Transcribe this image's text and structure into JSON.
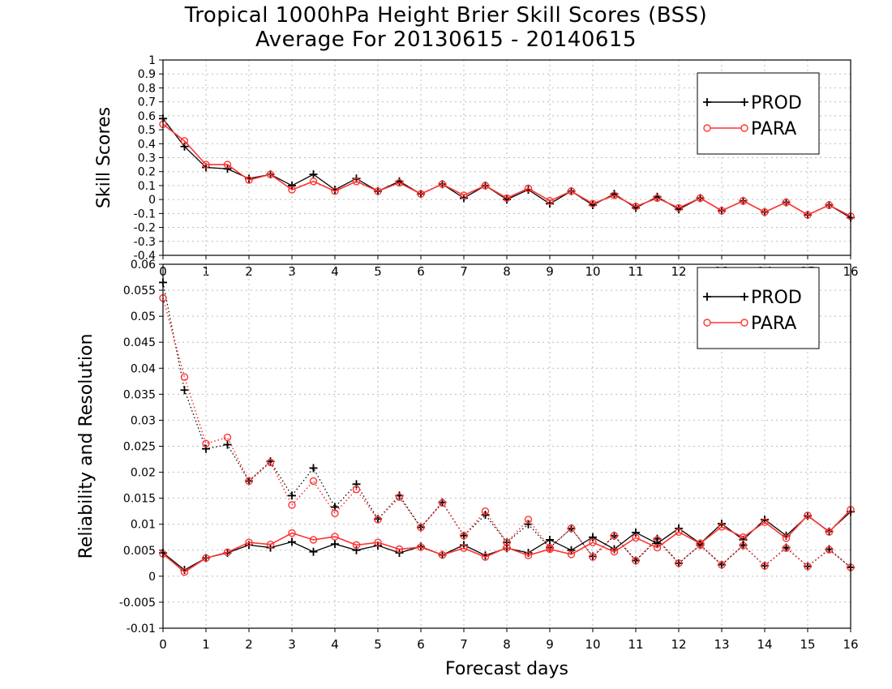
{
  "title": "Tropical 1000hPa Height Brier Skill Scores (BSS)",
  "subtitle": "Average For 20130615 - 20140615",
  "colors": {
    "prod": "#000000",
    "para": "#ff3333",
    "grid": "#bbbbbb",
    "axis": "#000000"
  },
  "chart_data": [
    {
      "type": "line",
      "ylabel": "Skill Scores",
      "xlabel": "",
      "xlim": [
        0,
        16
      ],
      "ylim": [
        -0.4,
        1
      ],
      "x_ticks": [
        "0",
        "1",
        "2",
        "3",
        "4",
        "5",
        "6",
        "7",
        "8",
        "9",
        "10",
        "11",
        "12",
        "13",
        "14",
        "15",
        "16"
      ],
      "y_ticks": [
        "-0.4",
        "-0.3",
        "-0.2",
        "-0.1",
        "0",
        "0.1",
        "0.2",
        "0.3",
        "0.4",
        "0.5",
        "0.6",
        "0.7",
        "0.8",
        "0.9",
        "1"
      ],
      "grid": true,
      "legend_position": "top-right",
      "x": [
        0,
        0.5,
        1,
        1.5,
        2,
        2.5,
        3,
        3.5,
        4,
        4.5,
        5,
        5.5,
        6,
        6.5,
        7,
        7.5,
        8,
        8.5,
        9,
        9.5,
        10,
        10.5,
        11,
        11.5,
        12,
        12.5,
        13,
        13.5,
        14,
        14.5,
        15,
        15.5,
        16
      ],
      "series": [
        {
          "name": "PROD",
          "marker": "plus",
          "style": "solid",
          "values": [
            0.58,
            0.38,
            0.23,
            0.22,
            0.15,
            0.18,
            0.1,
            0.18,
            0.07,
            0.15,
            0.06,
            0.13,
            0.04,
            0.11,
            0.01,
            0.1,
            0.0,
            0.07,
            -0.03,
            0.06,
            -0.04,
            0.04,
            -0.06,
            0.02,
            -0.07,
            0.01,
            -0.08,
            -0.01,
            -0.09,
            -0.02,
            -0.11,
            -0.04,
            -0.13
          ]
        },
        {
          "name": "PARA",
          "marker": "circle",
          "style": "solid",
          "values": [
            0.54,
            0.42,
            0.25,
            0.25,
            0.14,
            0.18,
            0.07,
            0.13,
            0.06,
            0.13,
            0.06,
            0.12,
            0.04,
            0.11,
            0.03,
            0.1,
            0.01,
            0.08,
            -0.01,
            0.06,
            -0.03,
            0.03,
            -0.05,
            0.01,
            -0.06,
            0.01,
            -0.08,
            -0.01,
            -0.09,
            -0.02,
            -0.11,
            -0.04,
            -0.12
          ]
        }
      ]
    },
    {
      "type": "line",
      "ylabel": "Reliability and Resolution",
      "xlabel": "Forecast days",
      "xlim": [
        0,
        16
      ],
      "ylim": [
        -0.01,
        0.06
      ],
      "x_ticks": [
        "0",
        "1",
        "2",
        "3",
        "4",
        "5",
        "6",
        "7",
        "8",
        "9",
        "10",
        "11",
        "12",
        "13",
        "14",
        "15",
        "16"
      ],
      "y_ticks": [
        "-0.01",
        "-0.005",
        "0",
        "0.005",
        "0.01",
        "0.015",
        "0.02",
        "0.025",
        "0.03",
        "0.035",
        "0.04",
        "0.045",
        "0.05",
        "0.055",
        "0.06"
      ],
      "grid": true,
      "legend_position": "top-right",
      "x": [
        0,
        0.5,
        1,
        1.5,
        2,
        2.5,
        3,
        3.5,
        4,
        4.5,
        5,
        5.5,
        6,
        6.5,
        7,
        7.5,
        8,
        8.5,
        9,
        9.5,
        10,
        10.5,
        11,
        11.5,
        12,
        12.5,
        13,
        13.5,
        14,
        14.5,
        15,
        15.5,
        16
      ],
      "series": [
        {
          "name": "PROD",
          "marker": "plus",
          "style": "dotted",
          "values": [
            0.0565,
            0.0358,
            0.0245,
            0.0253,
            0.0183,
            0.0221,
            0.0155,
            0.0208,
            0.0133,
            0.0177,
            0.011,
            0.0155,
            0.0094,
            0.0142,
            0.0078,
            0.0118,
            0.0065,
            0.01,
            0.0055,
            0.0092,
            0.0038,
            0.0078,
            0.003,
            0.0072,
            0.0025,
            0.006,
            0.0022,
            0.006,
            0.002,
            0.0055,
            0.0019,
            0.0052,
            0.0017
          ]
        },
        {
          "name": "PARA",
          "marker": "circle",
          "style": "dotted",
          "values": [
            0.0535,
            0.0383,
            0.0255,
            0.0267,
            0.0183,
            0.0219,
            0.0137,
            0.0183,
            0.0121,
            0.0167,
            0.0109,
            0.0152,
            0.0094,
            0.0141,
            0.0078,
            0.0125,
            0.0065,
            0.0109,
            0.0055,
            0.0092,
            0.0037,
            0.0078,
            0.003,
            0.007,
            0.0025,
            0.006,
            0.0022,
            0.0059,
            0.002,
            0.0054,
            0.0019,
            0.0051,
            0.0017
          ]
        },
        {
          "name": "PROD",
          "marker": "plus",
          "style": "solid",
          "values": [
            0.0045,
            0.0012,
            0.0035,
            0.0045,
            0.006,
            0.0055,
            0.0066,
            0.0047,
            0.0062,
            0.005,
            0.0059,
            0.0045,
            0.0057,
            0.0041,
            0.006,
            0.004,
            0.0054,
            0.0045,
            0.007,
            0.005,
            0.0075,
            0.0052,
            0.0084,
            0.0063,
            0.0092,
            0.0063,
            0.0101,
            0.007,
            0.0109,
            0.0078,
            0.0116,
            0.0086,
            0.0124
          ]
        },
        {
          "name": "PARA",
          "marker": "circle",
          "style": "solid",
          "values": [
            0.0043,
            0.0008,
            0.0035,
            0.0046,
            0.0065,
            0.0061,
            0.0083,
            0.007,
            0.0076,
            0.006,
            0.0065,
            0.0052,
            0.0056,
            0.0041,
            0.0054,
            0.0037,
            0.0055,
            0.004,
            0.0052,
            0.0042,
            0.0065,
            0.0047,
            0.0074,
            0.0055,
            0.0085,
            0.0063,
            0.0095,
            0.0075,
            0.0104,
            0.0073,
            0.0117,
            0.0085,
            0.0128
          ]
        }
      ]
    }
  ]
}
